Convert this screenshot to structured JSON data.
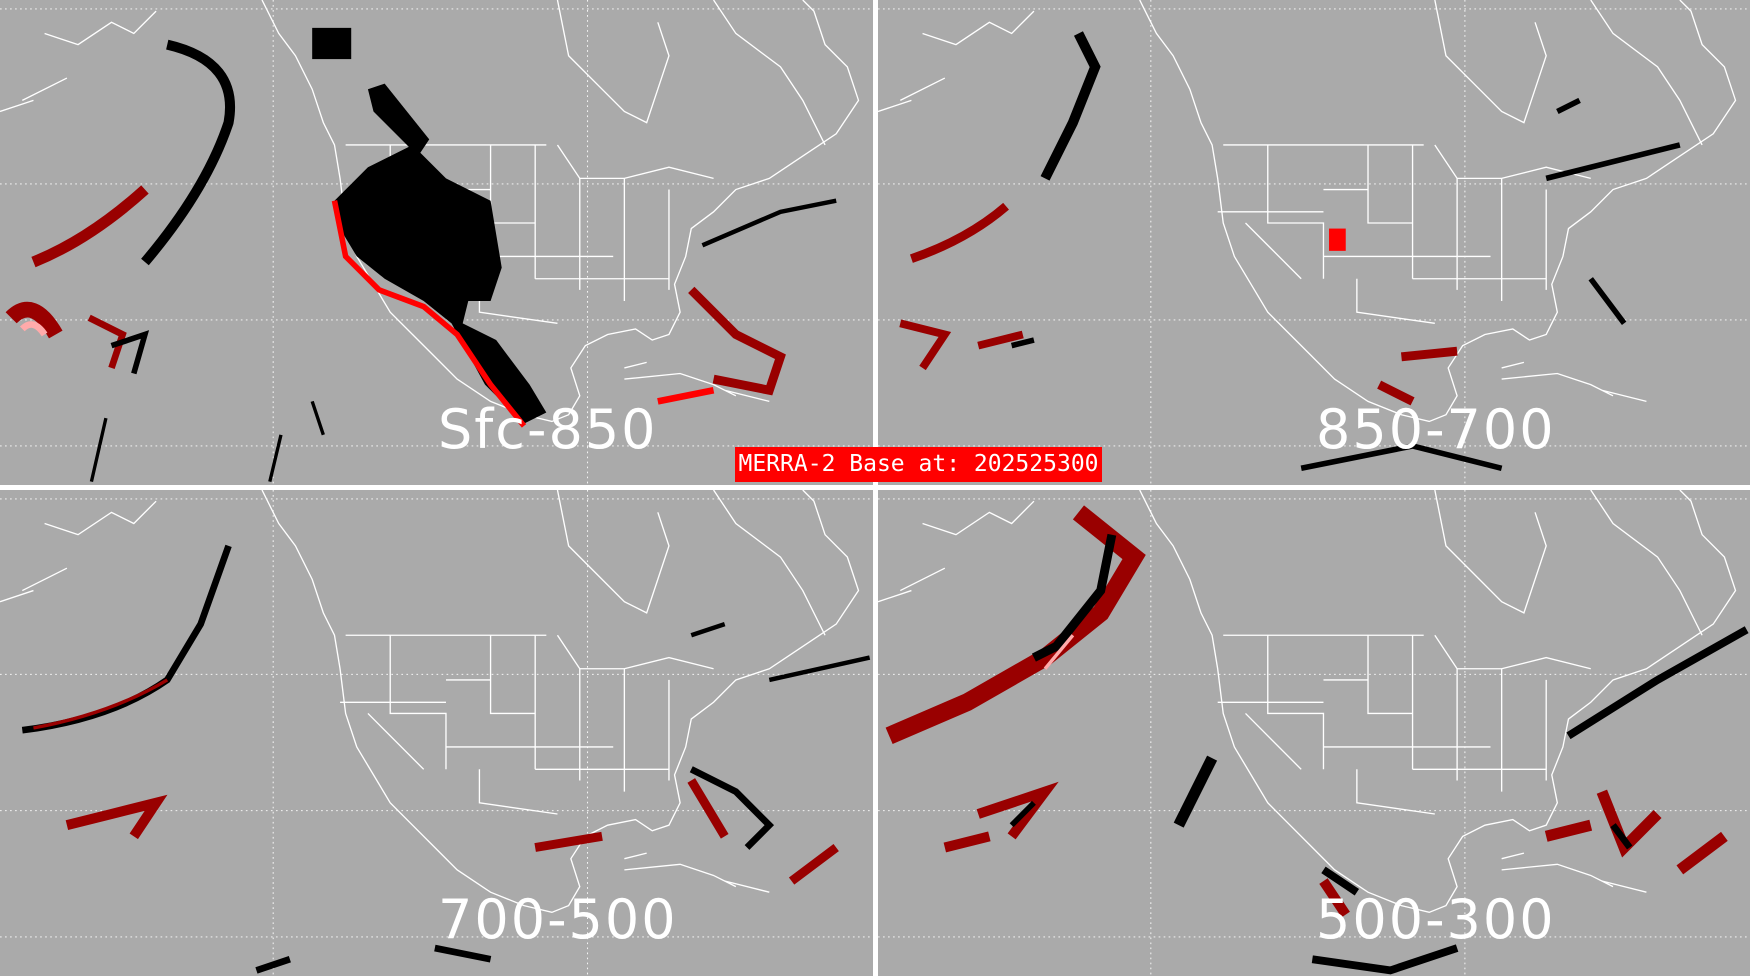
{
  "title": "MERRA-2 Base at: 202525300",
  "panels": [
    {
      "label": "Sfc-850"
    },
    {
      "label": "850-700"
    },
    {
      "label": "700-500"
    },
    {
      "label": "500-300"
    }
  ],
  "colors": {
    "background": "#aaaaaa",
    "black_category": "#000000",
    "red_category": "#ff0000",
    "dark_red_category": "#990000",
    "pink_category": "#ffaaaa",
    "map_lines": "#ffffff",
    "divider": "#ffffff",
    "title_box": "#ff0000"
  }
}
